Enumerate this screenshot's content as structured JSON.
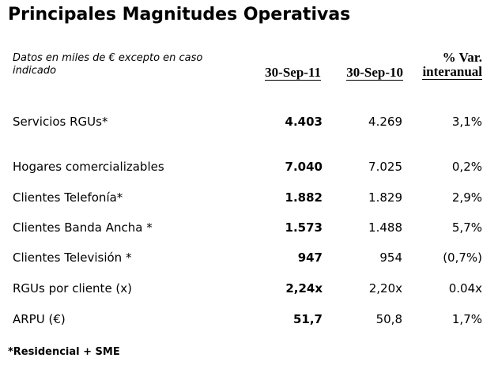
{
  "title": "Principales Magnitudes Operativas",
  "subtitle": "Datos en miles de € excepto en caso indicado",
  "columns": {
    "c1": "30-Sep-11",
    "c2": "30-Sep-10",
    "c3_line1": "% Var.",
    "c3_line2": "interanual"
  },
  "rows": [
    {
      "label": "Servicios RGUs*",
      "v1": "4.403",
      "v2": "4.269",
      "v3": "3,1%"
    },
    {
      "label": "Hogares comercializables",
      "v1": "7.040",
      "v2": "7.025",
      "v3": "0,2%"
    },
    {
      "label": "Clientes Telefonía*",
      "v1": "1.882",
      "v2": "1.829",
      "v3": "2,9%"
    },
    {
      "label": "Clientes Banda Ancha *",
      "v1": "1.573",
      "v2": "1.488",
      "v3": "5,7%"
    },
    {
      "label": "Clientes Televisión *",
      "v1": "947",
      "v2": "954",
      "v3": "(0,7%)"
    },
    {
      "label": "RGUs por cliente (x)",
      "v1": "2,24x",
      "v2": "2,20x",
      "v3": "0.04x"
    },
    {
      "label": "ARPU (€)",
      "v1": "51,7",
      "v2": "50,8",
      "v3": "1,7%"
    }
  ],
  "footnote": "*Residencial + SME"
}
